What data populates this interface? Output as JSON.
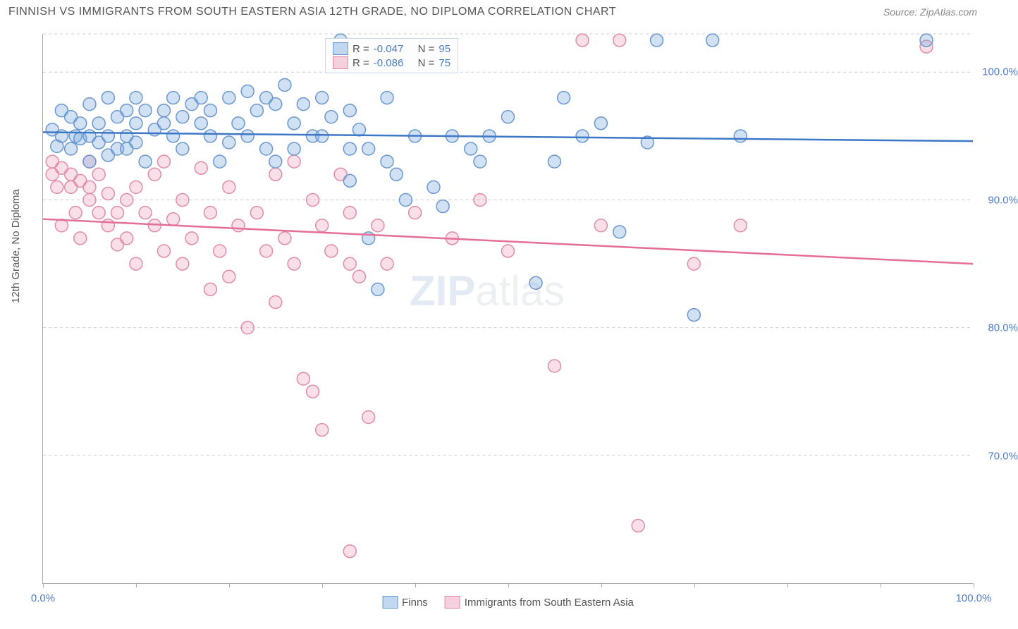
{
  "header": {
    "title": "FINNISH VS IMMIGRANTS FROM SOUTH EASTERN ASIA 12TH GRADE, NO DIPLOMA CORRELATION CHART",
    "source": "Source: ZipAtlas.com"
  },
  "watermark": {
    "bold": "ZIP",
    "rest": "atlas"
  },
  "chart": {
    "type": "scatter",
    "y_axis_label": "12th Grade, No Diploma",
    "xlim": [
      0,
      100
    ],
    "ylim": [
      60,
      103
    ],
    "yticks": [
      70,
      80,
      90,
      100
    ],
    "ytick_labels": [
      "70.0%",
      "80.0%",
      "90.0%",
      "100.0%"
    ],
    "xticks_left": "0.0%",
    "xticks_right": "100.0%",
    "grid_color": "#cccccc",
    "background_color": "#ffffff",
    "point_radius": 9,
    "series_a": {
      "name": "Finns",
      "color_fill": "rgba(120,168,224,0.35)",
      "color_stroke": "#6a97d0",
      "trend_color": "#3d78c7",
      "R": "-0.047",
      "N": "95",
      "trend": {
        "y_at_x0": 95.3,
        "y_at_x100": 94.6
      },
      "points": [
        [
          1,
          95.5
        ],
        [
          1.5,
          94.2
        ],
        [
          2,
          97.0
        ],
        [
          2,
          95.0
        ],
        [
          3,
          96.5
        ],
        [
          3,
          94.0
        ],
        [
          3.5,
          95.0
        ],
        [
          4,
          96.0
        ],
        [
          4,
          94.8
        ],
        [
          5,
          97.5
        ],
        [
          5,
          95.0
        ],
        [
          5,
          93.0
        ],
        [
          6,
          96.0
        ],
        [
          6,
          94.5
        ],
        [
          7,
          98.0
        ],
        [
          7,
          95.0
        ],
        [
          7,
          93.5
        ],
        [
          8,
          96.5
        ],
        [
          8,
          94.0
        ],
        [
          9,
          97.0
        ],
        [
          9,
          95.0
        ],
        [
          9,
          94.0
        ],
        [
          10,
          98.0
        ],
        [
          10,
          96.0
        ],
        [
          10,
          94.5
        ],
        [
          11,
          97.0
        ],
        [
          11,
          93.0
        ],
        [
          12,
          95.5
        ],
        [
          13,
          97.0
        ],
        [
          13,
          96.0
        ],
        [
          14,
          98.0
        ],
        [
          14,
          95.0
        ],
        [
          15,
          96.5
        ],
        [
          15,
          94.0
        ],
        [
          16,
          97.5
        ],
        [
          17,
          98.0
        ],
        [
          17,
          96.0
        ],
        [
          18,
          95.0
        ],
        [
          18,
          97.0
        ],
        [
          19,
          93.0
        ],
        [
          20,
          98.0
        ],
        [
          20,
          94.5
        ],
        [
          21,
          96.0
        ],
        [
          22,
          98.5
        ],
        [
          22,
          95.0
        ],
        [
          23,
          97.0
        ],
        [
          24,
          98.0
        ],
        [
          24,
          94.0
        ],
        [
          25,
          97.5
        ],
        [
          25,
          93.0
        ],
        [
          26,
          99.0
        ],
        [
          27,
          96.0
        ],
        [
          27,
          94.0
        ],
        [
          28,
          97.5
        ],
        [
          29,
          95.0
        ],
        [
          30,
          98.0
        ],
        [
          30,
          95.0
        ],
        [
          31,
          96.5
        ],
        [
          32,
          102.5
        ],
        [
          33,
          97.0
        ],
        [
          33,
          94.0
        ],
        [
          33,
          91.5
        ],
        [
          34,
          95.5
        ],
        [
          35,
          87.0
        ],
        [
          35,
          94.0
        ],
        [
          36,
          83.0
        ],
        [
          37,
          98.0
        ],
        [
          37,
          93.0
        ],
        [
          38,
          92.0
        ],
        [
          39,
          90.0
        ],
        [
          40,
          95.0
        ],
        [
          42,
          91.0
        ],
        [
          43,
          89.5
        ],
        [
          44,
          95.0
        ],
        [
          46,
          94.0
        ],
        [
          47,
          93.0
        ],
        [
          48,
          95.0
        ],
        [
          50,
          96.5
        ],
        [
          53,
          83.5
        ],
        [
          55,
          93.0
        ],
        [
          56,
          98.0
        ],
        [
          58,
          95.0
        ],
        [
          60,
          96.0
        ],
        [
          62,
          87.5
        ],
        [
          65,
          94.5
        ],
        [
          66,
          102.5
        ],
        [
          70,
          81.0
        ],
        [
          72,
          102.5
        ],
        [
          75,
          95.0
        ],
        [
          95,
          102.5
        ]
      ]
    },
    "series_b": {
      "name": "Immigrants from South Eastern Asia",
      "color_fill": "rgba(236,150,178,0.3)",
      "color_stroke": "#e28ba8",
      "trend_color": "#e56f94",
      "R": "-0.086",
      "N": "75",
      "trend": {
        "y_at_x0": 88.5,
        "y_at_x100": 85.0
      },
      "points": [
        [
          1,
          93.0
        ],
        [
          1,
          92.0
        ],
        [
          1.5,
          91.0
        ],
        [
          2,
          92.5
        ],
        [
          2,
          88.0
        ],
        [
          3,
          91.0
        ],
        [
          3,
          92.0
        ],
        [
          3.5,
          89.0
        ],
        [
          4,
          91.5
        ],
        [
          4,
          87.0
        ],
        [
          5,
          93.0
        ],
        [
          5,
          90.0
        ],
        [
          5,
          91.0
        ],
        [
          6,
          89.0
        ],
        [
          6,
          92.0
        ],
        [
          7,
          90.5
        ],
        [
          7,
          88.0
        ],
        [
          8,
          89.0
        ],
        [
          8,
          86.5
        ],
        [
          9,
          90.0
        ],
        [
          9,
          87.0
        ],
        [
          10,
          91.0
        ],
        [
          10,
          85.0
        ],
        [
          11,
          89.0
        ],
        [
          12,
          92.0
        ],
        [
          12,
          88.0
        ],
        [
          13,
          93.0
        ],
        [
          13,
          86.0
        ],
        [
          14,
          88.5
        ],
        [
          15,
          85.0
        ],
        [
          15,
          90.0
        ],
        [
          16,
          87.0
        ],
        [
          17,
          92.5
        ],
        [
          18,
          89.0
        ],
        [
          18,
          83.0
        ],
        [
          19,
          86.0
        ],
        [
          20,
          91.0
        ],
        [
          20,
          84.0
        ],
        [
          21,
          88.0
        ],
        [
          22,
          80.0
        ],
        [
          23,
          89.0
        ],
        [
          24,
          86.0
        ],
        [
          25,
          92.0
        ],
        [
          25,
          82.0
        ],
        [
          26,
          87.0
        ],
        [
          27,
          93.0
        ],
        [
          27,
          85.0
        ],
        [
          28,
          76.0
        ],
        [
          29,
          90.0
        ],
        [
          29,
          75.0
        ],
        [
          30,
          88.0
        ],
        [
          30,
          72.0
        ],
        [
          31,
          86.0
        ],
        [
          32,
          92.0
        ],
        [
          33,
          85.0
        ],
        [
          33,
          89.0
        ],
        [
          33,
          62.5
        ],
        [
          34,
          84.0
        ],
        [
          35,
          73.0
        ],
        [
          36,
          88.0
        ],
        [
          37,
          85.0
        ],
        [
          40,
          89.0
        ],
        [
          44,
          87.0
        ],
        [
          47,
          90.0
        ],
        [
          50,
          86.0
        ],
        [
          55,
          77.0
        ],
        [
          58,
          102.5
        ],
        [
          60,
          88.0
        ],
        [
          62,
          102.5
        ],
        [
          64,
          64.5
        ],
        [
          70,
          85.0
        ],
        [
          75,
          88.0
        ],
        [
          95,
          102.0
        ]
      ]
    },
    "legend_bottom": {
      "item_a": "Finns",
      "item_b": "Immigrants from South Eastern Asia"
    }
  }
}
